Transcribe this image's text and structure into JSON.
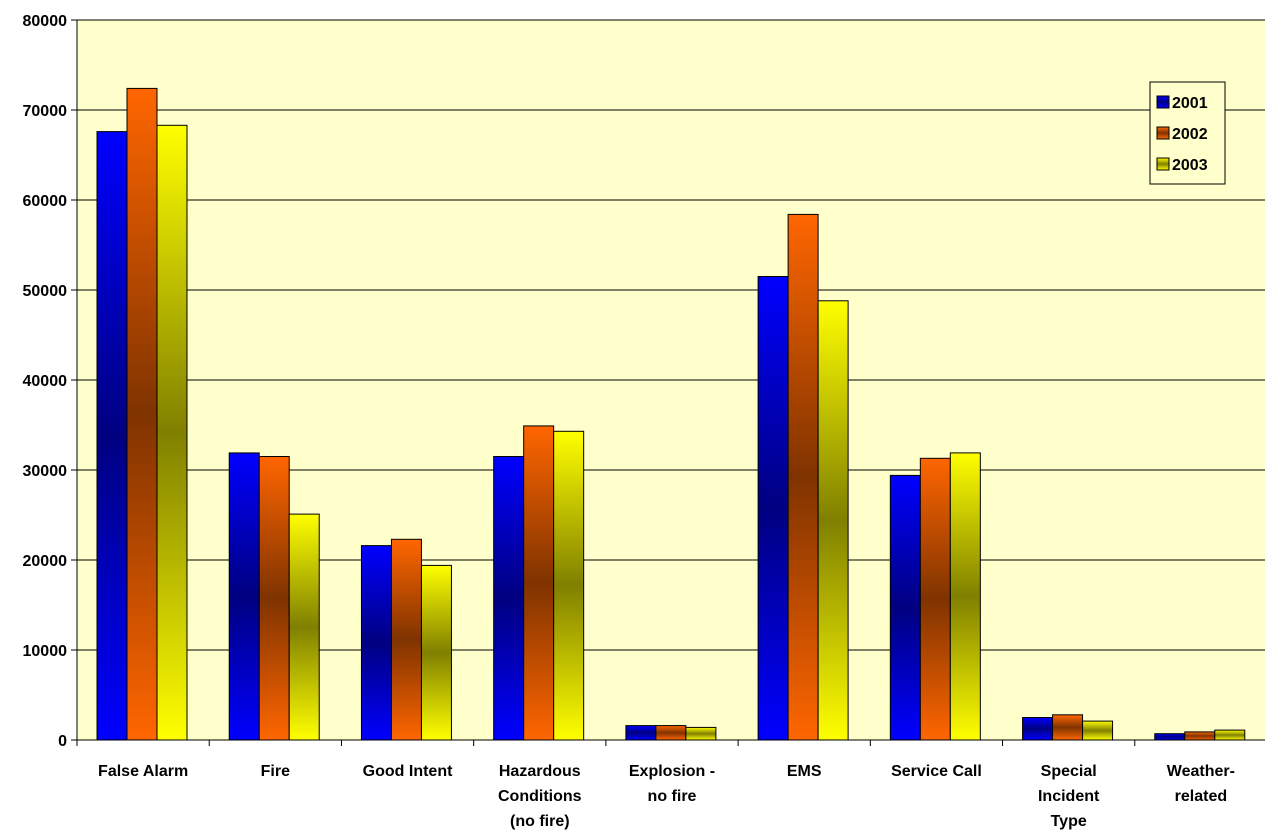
{
  "chart_data": {
    "type": "bar",
    "categories": [
      [
        "False Alarm"
      ],
      [
        "Fire"
      ],
      [
        "Good Intent"
      ],
      [
        "Hazardous",
        "Conditions",
        "(no fire)"
      ],
      [
        "Explosion -",
        "no fire"
      ],
      [
        "EMS"
      ],
      [
        "Service Call"
      ],
      [
        "Special",
        "Incident",
        "Type"
      ],
      [
        "Weather-",
        "related"
      ]
    ],
    "series": [
      {
        "name": "2001",
        "values": [
          67600,
          31900,
          21600,
          31500,
          1600,
          51500,
          29400,
          2500,
          700
        ]
      },
      {
        "name": "2002",
        "values": [
          72400,
          31500,
          22300,
          34900,
          1600,
          58400,
          31300,
          2800,
          900
        ]
      },
      {
        "name": "2003",
        "values": [
          68300,
          25100,
          19400,
          34300,
          1400,
          48800,
          31900,
          2100,
          1100
        ]
      }
    ],
    "ylim": [
      0,
      80000
    ],
    "yticks": [
      0,
      10000,
      20000,
      30000,
      40000,
      50000,
      60000,
      70000,
      80000
    ],
    "grid": true,
    "legend_position": "top-right",
    "colors": {
      "plot_background": "#FFFFCC",
      "series_2001": [
        "#0000FF",
        "#000080"
      ],
      "series_2002": [
        "#FF6600",
        "#7F3300"
      ],
      "series_2003": [
        "#FFFF00",
        "#808000"
      ]
    }
  }
}
